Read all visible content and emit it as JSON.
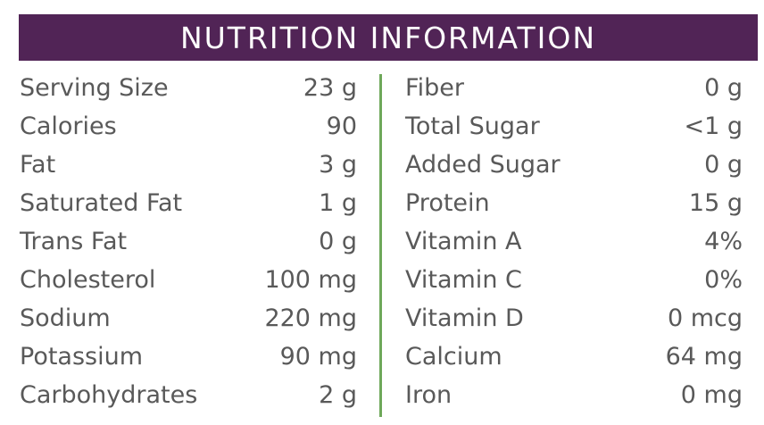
{
  "header": {
    "title": "NUTRITION INFORMATION"
  },
  "colors": {
    "header_bg": "#512456",
    "header_text": "#ffffff",
    "divider": "#6ea85a",
    "text": "#595959"
  },
  "left_column": [
    {
      "label": "Serving Size",
      "value": "23 g"
    },
    {
      "label": "Calories",
      "value": "90"
    },
    {
      "label": "Fat",
      "value": "3 g"
    },
    {
      "label": "Saturated Fat",
      "value": "1 g"
    },
    {
      "label": "Trans Fat",
      "value": "0 g"
    },
    {
      "label": "Cholesterol",
      "value": "100 mg"
    },
    {
      "label": "Sodium",
      "value": "220 mg"
    },
    {
      "label": "Potassium",
      "value": "90 mg"
    },
    {
      "label": "Carbohydrates",
      "value": "2 g"
    }
  ],
  "right_column": [
    {
      "label": "Fiber",
      "value": "0 g"
    },
    {
      "label": "Total Sugar",
      "value": "<1 g"
    },
    {
      "label": "Added Sugar",
      "value": "0 g"
    },
    {
      "label": "Protein",
      "value": "15 g"
    },
    {
      "label": "Vitamin A",
      "value": "4%"
    },
    {
      "label": "Vitamin C",
      "value": "0%"
    },
    {
      "label": "Vitamin D",
      "value": "0 mcg"
    },
    {
      "label": "Calcium",
      "value": "64 mg"
    },
    {
      "label": "Iron",
      "value": "0 mg"
    }
  ]
}
